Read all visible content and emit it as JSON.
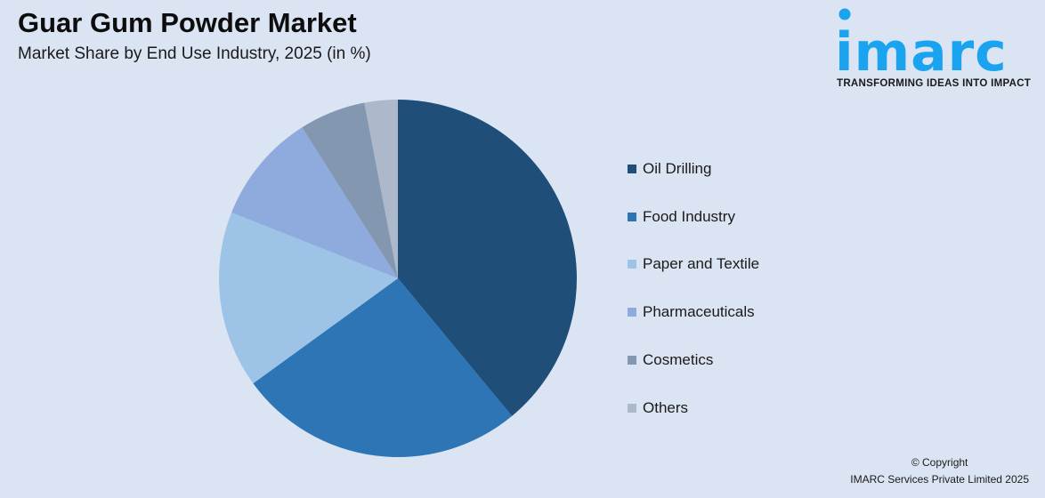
{
  "header": {
    "title": "Guar Gum Powder Market",
    "subtitle": "Market Share by End Use Industry, 2025 (in %)"
  },
  "logo": {
    "word": "imarc",
    "tagline": "TRANSFORMING IDEAS INTO IMPACT",
    "color": "#1aa3ef"
  },
  "footer": {
    "line1": "© Copyright",
    "line2": "IMARC Services Private Limited 2025"
  },
  "chart_data": {
    "type": "pie",
    "title": "Guar Gum Powder Market",
    "subtitle": "Market Share by End Use Industry, 2025 (in %)",
    "categories": [
      "Oil Drilling",
      "Food Industry",
      "Paper and Textile",
      "Pharmaceuticals",
      "Cosmetics",
      "Others"
    ],
    "values": [
      39,
      26,
      16,
      10,
      6,
      3
    ],
    "colors": [
      "#1f4e79",
      "#2e75b6",
      "#9dc3e6",
      "#8faadc",
      "#8497b0",
      "#adb9ca"
    ],
    "start_angle": "12 o'clock, clockwise",
    "legend_position": "right",
    "data_labels": false
  }
}
